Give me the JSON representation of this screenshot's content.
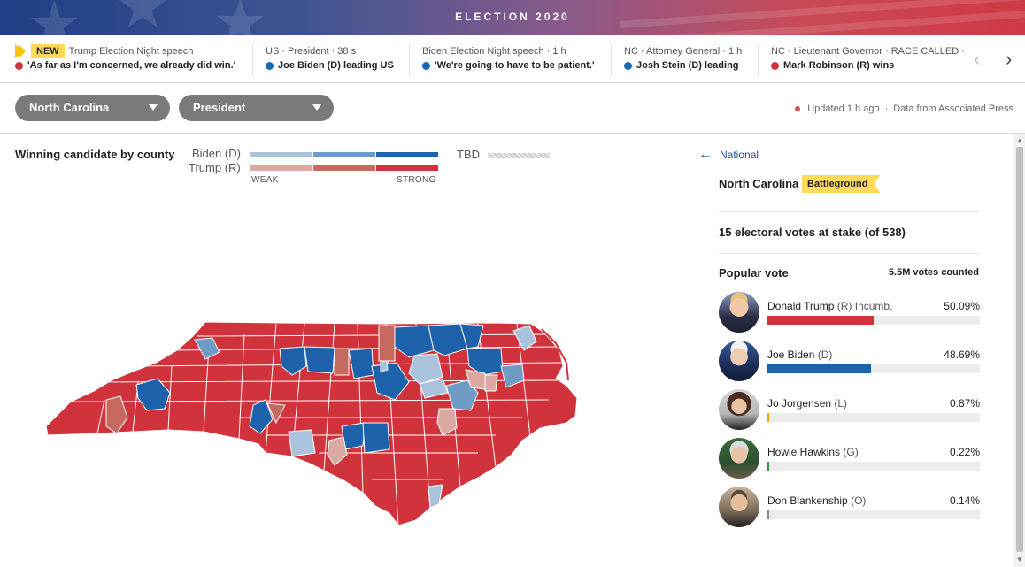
{
  "banner": {
    "title": "ELECTION 2020"
  },
  "ticker": {
    "items": [
      {
        "badge": "NEW",
        "head": "Trump Election Night speech",
        "dot_color": "#d0333b",
        "body": "'As far as I'm concerned, we already did win.'"
      },
      {
        "head": "US · President · 38 s",
        "dot_color": "#1668b8",
        "body": "Joe Biden (D) leading US"
      },
      {
        "head": "Biden Election Night speech · 1 h",
        "dot_color": "#1668b8",
        "body": "'We're going to have to be patient.'"
      },
      {
        "head": "NC · Attorney General · 1 h",
        "dot_color": "#1668b8",
        "body": "Josh Stein (D) leading"
      },
      {
        "head": "NC · Lieutenant Governor · RACE CALLED ·",
        "dot_color": "#d0333b",
        "body": "Mark Robinson (R) wins"
      }
    ],
    "prev_icon": "chevron-left-icon",
    "next_icon": "chevron-right-icon"
  },
  "controls": {
    "state_select": "North Carolina",
    "race_select": "President",
    "updated": "Updated 1 h ago",
    "source": "Data from Associated Press"
  },
  "map": {
    "title": "Winning candidate by county",
    "legend": {
      "biden": "Biden (D)",
      "trump": "Trump (R)",
      "tbd": "TBD",
      "weak": "WEAK",
      "strong": "STRONG",
      "biden_colors": [
        "#a9c3dc",
        "#6d9bc4",
        "#1d62ab"
      ],
      "trump_colors": [
        "#dba9a1",
        "#c66a5f",
        "#d0333b"
      ]
    }
  },
  "side": {
    "back_label": "National",
    "state": "North Carolina",
    "badge": "Battleground",
    "electoral": "15 electoral votes at stake (of 538)",
    "popular_title": "Popular vote",
    "votes_counted": "5.5M votes counted",
    "candidates": [
      {
        "name": "Donald Trump",
        "party": "(R)",
        "note": "Incumb.",
        "pct": "50.09%",
        "share": 0.5009,
        "color": "#d0333b"
      },
      {
        "name": "Joe Biden",
        "party": "(D)",
        "note": "",
        "pct": "48.69%",
        "share": 0.4869,
        "color": "#1d62ab"
      },
      {
        "name": "Jo Jorgensen",
        "party": "(L)",
        "note": "",
        "pct": "0.87%",
        "share": 0.0087,
        "color": "#f0a800"
      },
      {
        "name": "Howie Hawkins",
        "party": "(G)",
        "note": "",
        "pct": "0.22%",
        "share": 0.0022,
        "color": "#2e9a3e"
      },
      {
        "name": "Don Blankenship",
        "party": "(O)",
        "note": "",
        "pct": "0.14%",
        "share": 0.0014,
        "color": "#8a8a8a"
      }
    ]
  }
}
